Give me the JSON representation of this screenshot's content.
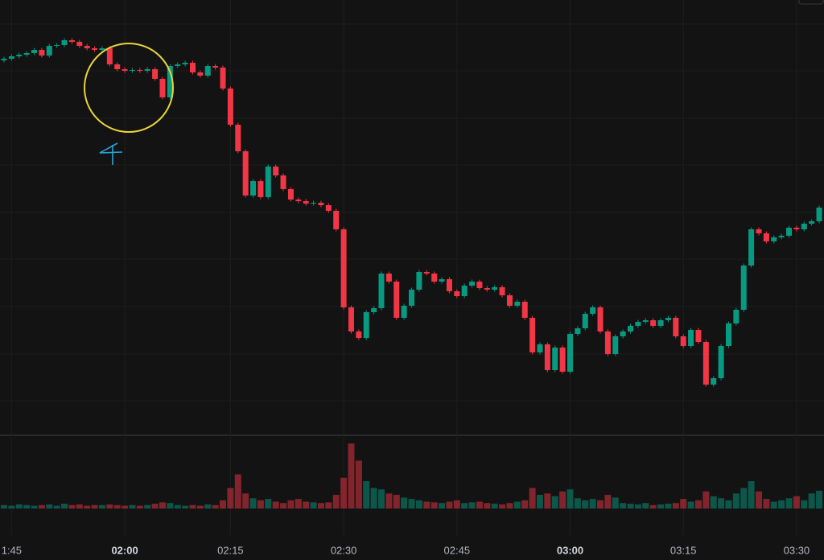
{
  "chart_data": {
    "type": "candlestick",
    "up_color": "#089981",
    "down_color": "#f23645",
    "ylim": [
      0,
      108
    ],
    "volume_ylim": [
      0,
      100
    ],
    "xticks": [
      {
        "value": 1,
        "label": "1:45"
      },
      {
        "value": 16,
        "label": "02:00"
      },
      {
        "value": 30,
        "label": "02:15"
      },
      {
        "value": 45,
        "label": "02:30"
      },
      {
        "value": 60,
        "label": "02:45"
      },
      {
        "value": 75,
        "label": "03:00"
      },
      {
        "value": 90,
        "label": "03:15"
      },
      {
        "value": 105,
        "label": "03:30"
      }
    ],
    "open": [
      93,
      93.4,
      94,
      94.4,
      94.8,
      95.6,
      94.2,
      96.6,
      96.8,
      98,
      97.6,
      96.6,
      96,
      95.6,
      96,
      92,
      90.8,
      90.4,
      90.6,
      90.4,
      90.8,
      88.4,
      83.8,
      91.6,
      92,
      92.4,
      90,
      89.2,
      91.6,
      91.2,
      86,
      77,
      70.4,
      59.4,
      63,
      59,
      66.6,
      64.4,
      61,
      58.4,
      58,
      57.4,
      57.6,
      57,
      55.6,
      51,
      31.6,
      25.6,
      24,
      30.4,
      31.4,
      40,
      38,
      29,
      32,
      36,
      40.4,
      40,
      38,
      38.6,
      35.6,
      34.4,
      37,
      38,
      36.4,
      36,
      36.6,
      34.6,
      32,
      33,
      29,
      20.4,
      22.4,
      16,
      21.6,
      15.6,
      25,
      26.4,
      30,
      31.6,
      25.6,
      20,
      24.4,
      25.6,
      27,
      28,
      28.4,
      27,
      28.4,
      29,
      24.4,
      22,
      26,
      23,
      12.4,
      14,
      22,
      27.6,
      31,
      42,
      51,
      50,
      48,
      49,
      49.4,
      51.4,
      51,
      52.4,
      53
    ],
    "high": [
      93.9,
      94.5,
      94.9,
      95.3,
      96.1,
      96.1,
      97.1,
      97.3,
      98.5,
      98.5,
      98.1,
      97.1,
      96.5,
      96.5,
      96.5,
      92.5,
      91.3,
      91.1,
      91.1,
      91.3,
      91.3,
      88.9,
      92.1,
      92.5,
      92.9,
      92.9,
      90.5,
      92.1,
      92.1,
      91.7,
      86.5,
      77.5,
      70.9,
      63.5,
      63.5,
      67.1,
      67.1,
      64.9,
      61.5,
      58.9,
      58.5,
      58.1,
      58.1,
      57.5,
      56.1,
      51.5,
      32.1,
      26.1,
      30.9,
      31.9,
      40.5,
      40.5,
      38.5,
      32.5,
      36.5,
      40.9,
      40.9,
      40.5,
      39.1,
      39.1,
      36.1,
      37.5,
      38.5,
      38.5,
      36.9,
      37.1,
      37.1,
      35.1,
      33.5,
      33.5,
      29.5,
      22.9,
      22.9,
      22.1,
      22.1,
      25.5,
      26.9,
      30.5,
      32.1,
      32.1,
      26.1,
      24.9,
      26.1,
      27.5,
      28.5,
      28.9,
      28.9,
      28.9,
      29.5,
      29.5,
      24.9,
      26.5,
      26.5,
      23.5,
      14.5,
      22.5,
      28.1,
      31.5,
      42.5,
      51.5,
      51.5,
      50.5,
      49.5,
      49.9,
      51.9,
      51.9,
      52.9,
      53.5,
      56.9
    ],
    "low": [
      92.5,
      92.9,
      93.5,
      93.9,
      94.3,
      93.7,
      93.7,
      96.1,
      96.3,
      97.1,
      96.1,
      95.5,
      95.1,
      95.1,
      91.5,
      90.3,
      89.9,
      89.9,
      89.9,
      89.9,
      87.9,
      83.3,
      83.3,
      91.1,
      91.5,
      89.5,
      88.7,
      88.7,
      90.7,
      85.5,
      76.5,
      69.9,
      58.9,
      58.9,
      58.5,
      58.5,
      63.9,
      60.5,
      57.9,
      57.5,
      56.9,
      56.9,
      56.5,
      55.1,
      50.5,
      31.1,
      25.1,
      23.5,
      23.5,
      29.9,
      30.9,
      37.5,
      28.5,
      28.5,
      31.5,
      35.5,
      39.5,
      37.5,
      37.5,
      35.1,
      33.9,
      33.9,
      36.5,
      35.9,
      35.5,
      35.5,
      34.1,
      31.5,
      31.5,
      28.5,
      19.9,
      19.9,
      15.5,
      15.5,
      15.1,
      15.1,
      24.5,
      25.9,
      29.5,
      25.1,
      19.5,
      19.5,
      23.9,
      25.1,
      26.5,
      27.5,
      26.5,
      26.5,
      27.9,
      23.9,
      21.5,
      21.5,
      22.5,
      11.9,
      11.9,
      13.5,
      21.5,
      27.1,
      30.5,
      41.5,
      49.5,
      47.5,
      47.5,
      48.5,
      48.9,
      50.5,
      50.5,
      51.9,
      52.5
    ],
    "close": [
      93.4,
      94,
      94.4,
      94.8,
      95.6,
      94.2,
      96.6,
      96.8,
      98,
      97.6,
      96.6,
      96,
      95.6,
      96,
      92,
      90.8,
      90.4,
      90.6,
      90.4,
      90.8,
      88.4,
      83.8,
      91.6,
      92,
      92.4,
      90,
      89.2,
      91.6,
      91.2,
      86,
      77,
      70.4,
      59.4,
      63,
      59,
      66.6,
      64.4,
      61,
      58.4,
      58,
      57.4,
      57.6,
      57,
      55.6,
      51,
      31.6,
      25.6,
      24,
      30.4,
      31.4,
      40,
      38,
      29,
      32,
      36,
      40.4,
      40,
      38,
      38.6,
      35.6,
      34.4,
      37,
      38,
      36.4,
      36,
      36.6,
      34.6,
      32,
      33,
      29,
      20.4,
      22.4,
      16,
      21.6,
      15.6,
      25,
      26.4,
      30,
      31.6,
      25.6,
      20,
      24.4,
      25.6,
      27,
      28,
      28.4,
      27,
      28.4,
      29,
      24.4,
      22,
      26,
      23,
      12.4,
      14,
      22,
      27.6,
      31,
      42,
      51,
      50,
      48,
      49,
      49.4,
      51.4,
      51,
      52.4,
      53,
      56.4
    ],
    "volume": [
      5,
      4,
      6,
      5,
      4,
      5,
      6,
      4,
      7,
      5,
      6,
      4,
      5,
      5,
      6,
      5,
      4,
      5,
      4,
      5,
      7,
      9,
      8,
      5,
      4,
      5,
      4,
      6,
      5,
      12,
      30,
      50,
      22,
      15,
      12,
      14,
      10,
      8,
      12,
      14,
      10,
      9,
      8,
      9,
      20,
      45,
      95,
      70,
      40,
      30,
      28,
      22,
      20,
      16,
      14,
      12,
      10,
      9,
      8,
      10,
      12,
      8,
      9,
      10,
      8,
      7,
      6,
      8,
      10,
      12,
      30,
      20,
      22,
      18,
      25,
      28,
      15,
      12,
      14,
      12,
      20,
      16,
      8,
      7,
      6,
      8,
      5,
      6,
      7,
      8,
      14,
      10,
      12,
      25,
      18,
      15,
      12,
      22,
      30,
      40,
      25,
      14,
      10,
      12,
      15,
      18,
      12,
      22,
      26
    ]
  }
}
